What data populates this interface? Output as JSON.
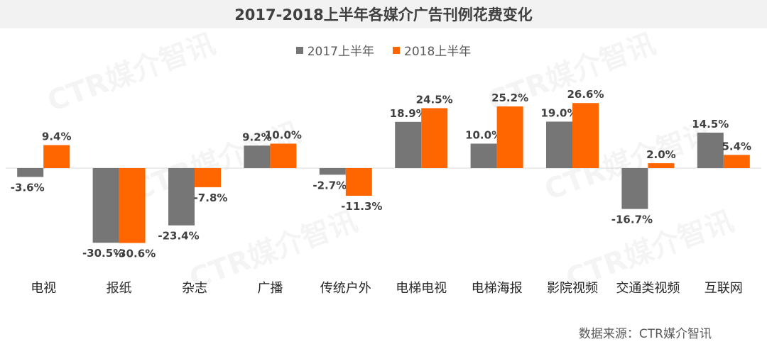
{
  "title": "2017-2018上半年各媒介广告刊例花费变化",
  "source": "数据来源：CTR媒介智讯",
  "watermark": "CTR媒介智讯",
  "colors": {
    "s2017": "#767676",
    "s2018": "#ff6600"
  },
  "chart_data": {
    "type": "bar",
    "title": "2017-2018上半年各媒介广告刊例花费变化",
    "categories": [
      "电视",
      "报纸",
      "杂志",
      "广播",
      "传统户外",
      "电梯电视",
      "电梯海报",
      "影院视频",
      "交通类视频",
      "互联网"
    ],
    "series": [
      {
        "name": "2017上半年",
        "values": [
          -3.6,
          -30.5,
          -23.4,
          9.2,
          -2.7,
          18.9,
          10.0,
          19.0,
          -16.7,
          14.5
        ],
        "labels": [
          "-3.6%",
          "-30.5%",
          "-23.4%",
          "9.2%",
          "-2.7%",
          "18.9%",
          "10.0%",
          "19.0%",
          "-16.7%",
          "14.5%"
        ]
      },
      {
        "name": "2018上半年",
        "values": [
          9.4,
          -30.6,
          -7.8,
          10.0,
          -11.3,
          24.5,
          25.2,
          26.6,
          2.0,
          5.4
        ],
        "labels": [
          "9.4%",
          "-30.6%",
          "-7.8%",
          "10.0%",
          "-11.3%",
          "24.5%",
          "25.2%",
          "26.6%",
          "2.0%",
          "5.4%"
        ]
      }
    ],
    "legend_position": "top-center",
    "grid": false
  }
}
